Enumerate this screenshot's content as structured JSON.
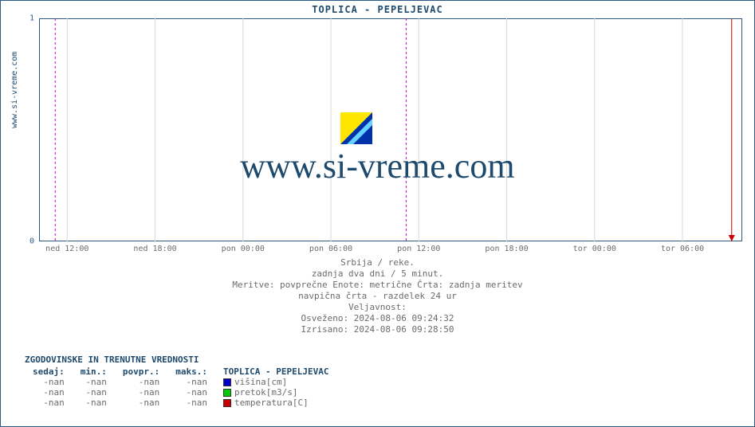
{
  "chart": {
    "type": "line",
    "title": "TOPLICA -  PEPELJEVAC",
    "ylabel": "www.si-vreme.com",
    "watermark": "www.si-vreme.com",
    "colors": {
      "frame": "#2c5a85",
      "grid": "#d9d9d9",
      "tick": "#888888",
      "text_primary": "#1e4a6d",
      "text_muted": "#6b6b6b",
      "marker_line": "#cc00cc",
      "endline": "#cc0000",
      "background": "#ffffff"
    },
    "ylim": [
      0,
      1
    ],
    "yticks": [
      0,
      1
    ],
    "xticks": [
      "ned 12:00",
      "ned 18:00",
      "pon 00:00",
      "pon 06:00",
      "pon 12:00",
      "pon 18:00",
      "tor 00:00",
      "tor 06:00"
    ],
    "xtick_positions_pct": [
      4.0,
      16.5,
      29.0,
      41.5,
      54.0,
      66.5,
      79.0,
      91.5
    ],
    "marker_positions_pct": [
      2.3,
      52.2
    ],
    "endline_position_pct": 98.5,
    "subcaption": {
      "line1": "Srbija / reke.",
      "line2": "zadnja dva dni / 5 minut.",
      "line3": "Meritve: povprečne  Enote: metrične  Črta: zadnja meritev",
      "line4": "navpična črta - razdelek 24 ur",
      "line5": "Veljavnost:",
      "line6": "Osveženo: 2024-08-06 09:24:32",
      "line7": "Izrisano: 2024-08-06 09:28:50"
    }
  },
  "legend": {
    "title": "ZGODOVINSKE IN TRENUTNE VREDNOSTI",
    "columns": [
      "sedaj:",
      "min.:",
      "povpr.:",
      "maks.:"
    ],
    "series_header": "TOPLICA -  PEPELJEVAC",
    "rows": [
      {
        "sedaj": "-nan",
        "min": "-nan",
        "povpr": "-nan",
        "maks": "-nan",
        "color": "#0000cc",
        "label": "višina[cm]"
      },
      {
        "sedaj": "-nan",
        "min": "-nan",
        "povpr": "-nan",
        "maks": "-nan",
        "color": "#00cc00",
        "label": "pretok[m3/s]"
      },
      {
        "sedaj": "-nan",
        "min": "-nan",
        "povpr": "-nan",
        "maks": "-nan",
        "color": "#cc0000",
        "label": "temperatura[C]"
      }
    ]
  }
}
